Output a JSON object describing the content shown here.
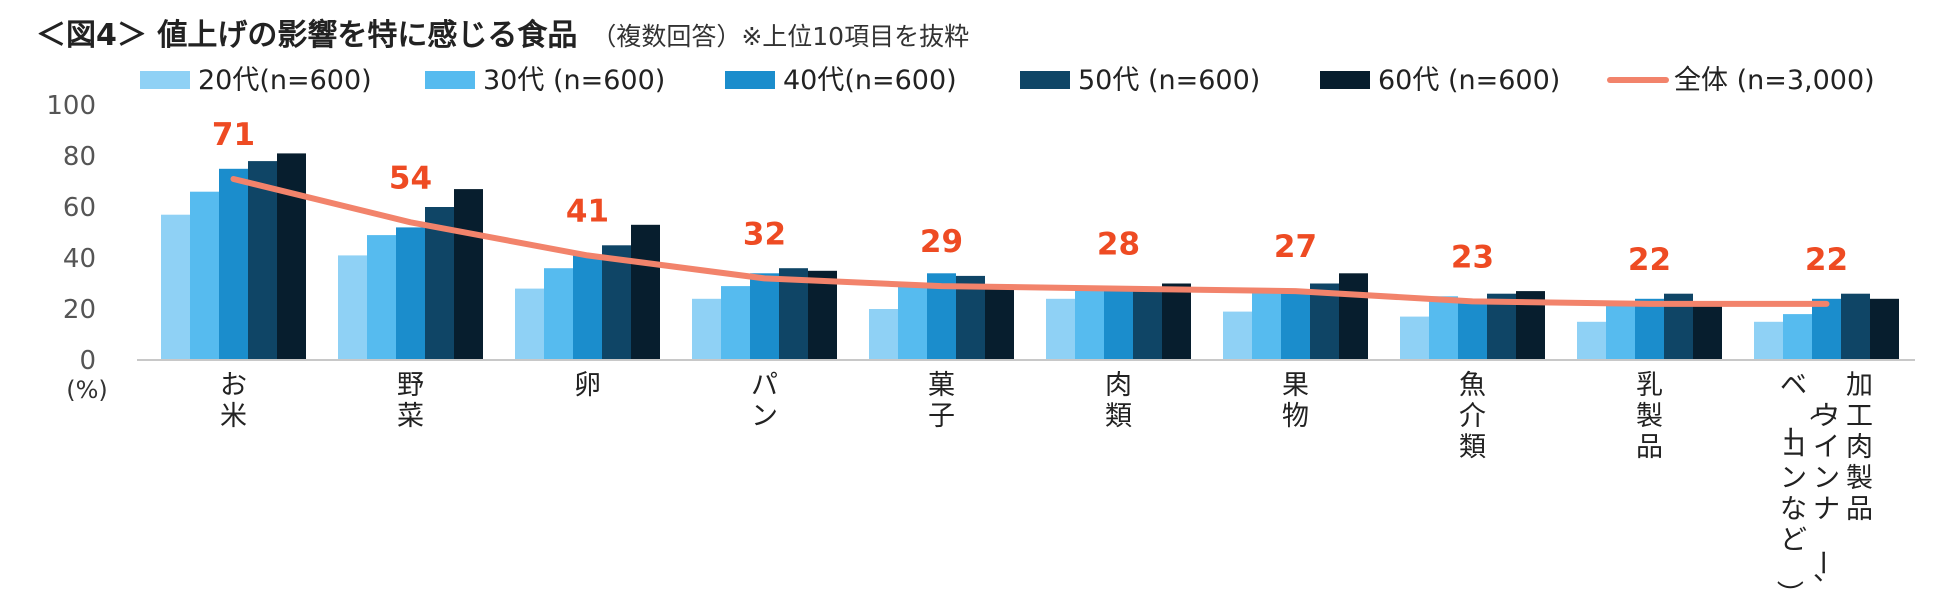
{
  "title": {
    "main": "＜図4＞ 値上げの影響を特に感じる食品",
    "sub": "（複数回答）※上位10項目を抜粋"
  },
  "y_unit": "(%)",
  "chart_data": {
    "type": "bar",
    "ylim": [
      0,
      100
    ],
    "yticks": [
      0,
      20,
      40,
      60,
      80,
      100
    ],
    "grid": false,
    "legend_position": "top",
    "categories": [
      "お米",
      "野菜",
      "卵",
      "パン",
      "菓子",
      "肉類",
      "果物",
      "魚介類",
      "乳製品",
      "加工肉製品（ウインナー、ベーコンなど）"
    ],
    "category_label_columns": [
      [
        "お米"
      ],
      [
        "野菜"
      ],
      [
        "卵"
      ],
      [
        "パン"
      ],
      [
        "菓子"
      ],
      [
        "肉類"
      ],
      [
        "果物"
      ],
      [
        "魚介類"
      ],
      [
        "乳製品"
      ],
      [
        "加工肉製品",
        "（ウインナー、",
        "ベーコンなど）"
      ]
    ],
    "series": [
      {
        "name": "20代(n=600)",
        "color": "#8fd1f5",
        "values": [
          57,
          41,
          28,
          24,
          20,
          24,
          19,
          17,
          15,
          15
        ]
      },
      {
        "name": "30代 (n=600)",
        "color": "#56bbef",
        "values": [
          66,
          49,
          36,
          29,
          29,
          29,
          27,
          25,
          22,
          18
        ]
      },
      {
        "name": "40代(n=600)",
        "color": "#1b8dcc",
        "values": [
          75,
          52,
          41,
          34,
          34,
          28,
          27,
          24,
          24,
          24
        ]
      },
      {
        "name": "50代 (n=600)",
        "color": "#0f4566",
        "values": [
          78,
          60,
          45,
          36,
          33,
          28,
          30,
          26,
          26,
          26
        ]
      },
      {
        "name": "60代 (n=600)",
        "color": "#071e2e",
        "values": [
          81,
          67,
          53,
          35,
          28,
          30,
          34,
          27,
          22,
          24
        ]
      }
    ],
    "line": {
      "name": "全体 (n=3,000)",
      "color": "#f2836b",
      "values": [
        71,
        54,
        41,
        32,
        29,
        28,
        27,
        23,
        22,
        22
      ]
    },
    "data_labels": [
      "71",
      "54",
      "41",
      "32",
      "29",
      "28",
      "27",
      "23",
      "22",
      "22"
    ],
    "data_label_color": "#ee4b23"
  }
}
